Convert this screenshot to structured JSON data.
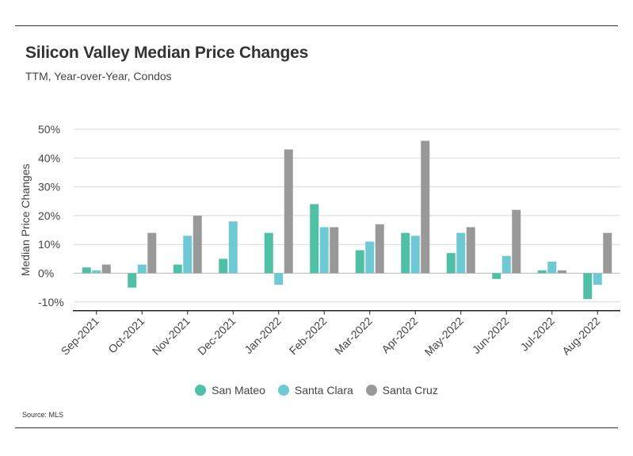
{
  "chart_data": {
    "type": "bar",
    "title": "Silicon Valley Median Price Changes",
    "subtitle": "TTM, Year-over-Year, Condos",
    "ylabel": "Median Price Changes",
    "xlabel": "",
    "ylim": [
      -13,
      50
    ],
    "yticks": [
      {
        "value": 50,
        "label": "50%"
      },
      {
        "value": 40,
        "label": "40%"
      },
      {
        "value": 30,
        "label": "30%"
      },
      {
        "value": 20,
        "label": "20%"
      },
      {
        "value": 10,
        "label": "10%"
      },
      {
        "value": 0,
        "label": "0%"
      },
      {
        "value": -10,
        "label": "-10%"
      }
    ],
    "grid": true,
    "legend_position": "bottom",
    "categories": [
      "Sep-2021",
      "Oct-2021",
      "Nov-2021",
      "Dec-2021",
      "Jan-2022",
      "Feb-2022",
      "Mar-2022",
      "Apr-2022",
      "May-2022",
      "Jun-2022",
      "Jul-2022",
      "Aug-2022"
    ],
    "series": [
      {
        "name": "San Mateo",
        "color": "#4fc0a5",
        "values": [
          2,
          -5,
          3,
          5,
          14,
          24,
          8,
          14,
          7,
          -2,
          1,
          -9
        ]
      },
      {
        "name": "Santa Clara",
        "color": "#6ec9d4",
        "values": [
          1,
          3,
          13,
          18,
          -4,
          16,
          11,
          13,
          14,
          6,
          4,
          -4
        ]
      },
      {
        "name": "Santa Cruz",
        "color": "#999999",
        "values": [
          3,
          14,
          20,
          0,
          43,
          16,
          17,
          46,
          16,
          22,
          1,
          14
        ]
      }
    ],
    "source": "Source:  MLS"
  }
}
